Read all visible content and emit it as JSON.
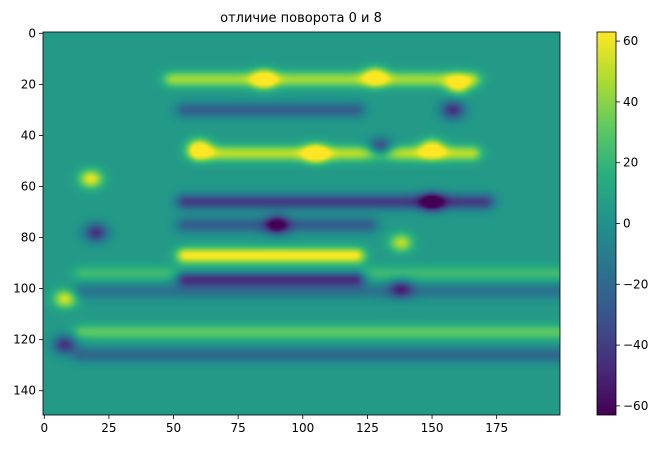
{
  "chart_data": {
    "type": "heatmap",
    "title": "отличие поворота 0 и 8",
    "xlabel": "",
    "ylabel": "",
    "x_range": [
      0,
      199
    ],
    "y_range": [
      0,
      149
    ],
    "y_axis_inverted": true,
    "x_ticks": [
      0,
      25,
      50,
      75,
      100,
      125,
      150,
      175
    ],
    "x_tick_labels": [
      "0",
      "25",
      "50",
      "75",
      "100",
      "125",
      "150",
      "175"
    ],
    "y_ticks": [
      0,
      20,
      40,
      60,
      80,
      100,
      120,
      140
    ],
    "y_tick_labels": [
      "0",
      "20",
      "40",
      "60",
      "80",
      "100",
      "120",
      "140"
    ],
    "colormap": "viridis",
    "color_range": [
      -63,
      63
    ],
    "colorbar_ticks": [
      60,
      40,
      20,
      0,
      -20,
      -40,
      -60
    ],
    "colorbar_tick_labels": [
      "60",
      "40",
      "20",
      "0",
      "−20",
      "−40",
      "−60"
    ],
    "background_value": 5,
    "features": [
      {
        "kind": "band",
        "x": [
          15,
          200
        ],
        "y": 94,
        "value": 18
      },
      {
        "kind": "band",
        "x": [
          15,
          200
        ],
        "y": 101,
        "value": -20
      },
      {
        "kind": "band",
        "x": [
          15,
          200
        ],
        "y": 117,
        "value": 26
      },
      {
        "kind": "band",
        "x": [
          15,
          200
        ],
        "y": 126,
        "value": -25
      },
      {
        "kind": "band",
        "x": [
          50,
          165
        ],
        "y": 18,
        "value": 40
      },
      {
        "kind": "band",
        "x": [
          55,
          120
        ],
        "y": 30,
        "value": -30
      },
      {
        "kind": "band",
        "x": [
          60,
          165
        ],
        "y": 47,
        "value": 45
      },
      {
        "kind": "band",
        "x": [
          55,
          170
        ],
        "y": 66,
        "value": -45
      },
      {
        "kind": "band",
        "x": [
          55,
          125
        ],
        "y": 75,
        "value": -30
      },
      {
        "kind": "band",
        "x": [
          55,
          120
        ],
        "y": 87,
        "value": 60
      },
      {
        "kind": "band",
        "x": [
          55,
          120
        ],
        "y": 96,
        "value": -60
      },
      {
        "kind": "blob",
        "x": 18,
        "y": 57,
        "value": 55
      },
      {
        "kind": "blob",
        "x": 20,
        "y": 78,
        "value": -50
      },
      {
        "kind": "blob",
        "x": 8,
        "y": 104,
        "value": 50
      },
      {
        "kind": "blob",
        "x": 8,
        "y": 122,
        "value": -50
      },
      {
        "kind": "blob",
        "x": 128,
        "y": 17,
        "value": 55
      },
      {
        "kind": "blob",
        "x": 130,
        "y": 45,
        "value": -55
      },
      {
        "kind": "blob",
        "x": 160,
        "y": 20,
        "value": 55
      },
      {
        "kind": "blob",
        "x": 158,
        "y": 30,
        "value": -50
      },
      {
        "kind": "blob",
        "x": 150,
        "y": 45,
        "value": 55
      },
      {
        "kind": "blob",
        "x": 150,
        "y": 66,
        "value": -55
      },
      {
        "kind": "blob",
        "x": 138,
        "y": 82,
        "value": 45
      },
      {
        "kind": "blob",
        "x": 138,
        "y": 100,
        "value": -40
      },
      {
        "kind": "blob",
        "x": 85,
        "y": 18,
        "value": 60
      },
      {
        "kind": "blob",
        "x": 60,
        "y": 45,
        "value": 60
      },
      {
        "kind": "blob",
        "x": 105,
        "y": 47,
        "value": 60
      },
      {
        "kind": "blob",
        "x": 90,
        "y": 75,
        "value": -55
      }
    ]
  }
}
